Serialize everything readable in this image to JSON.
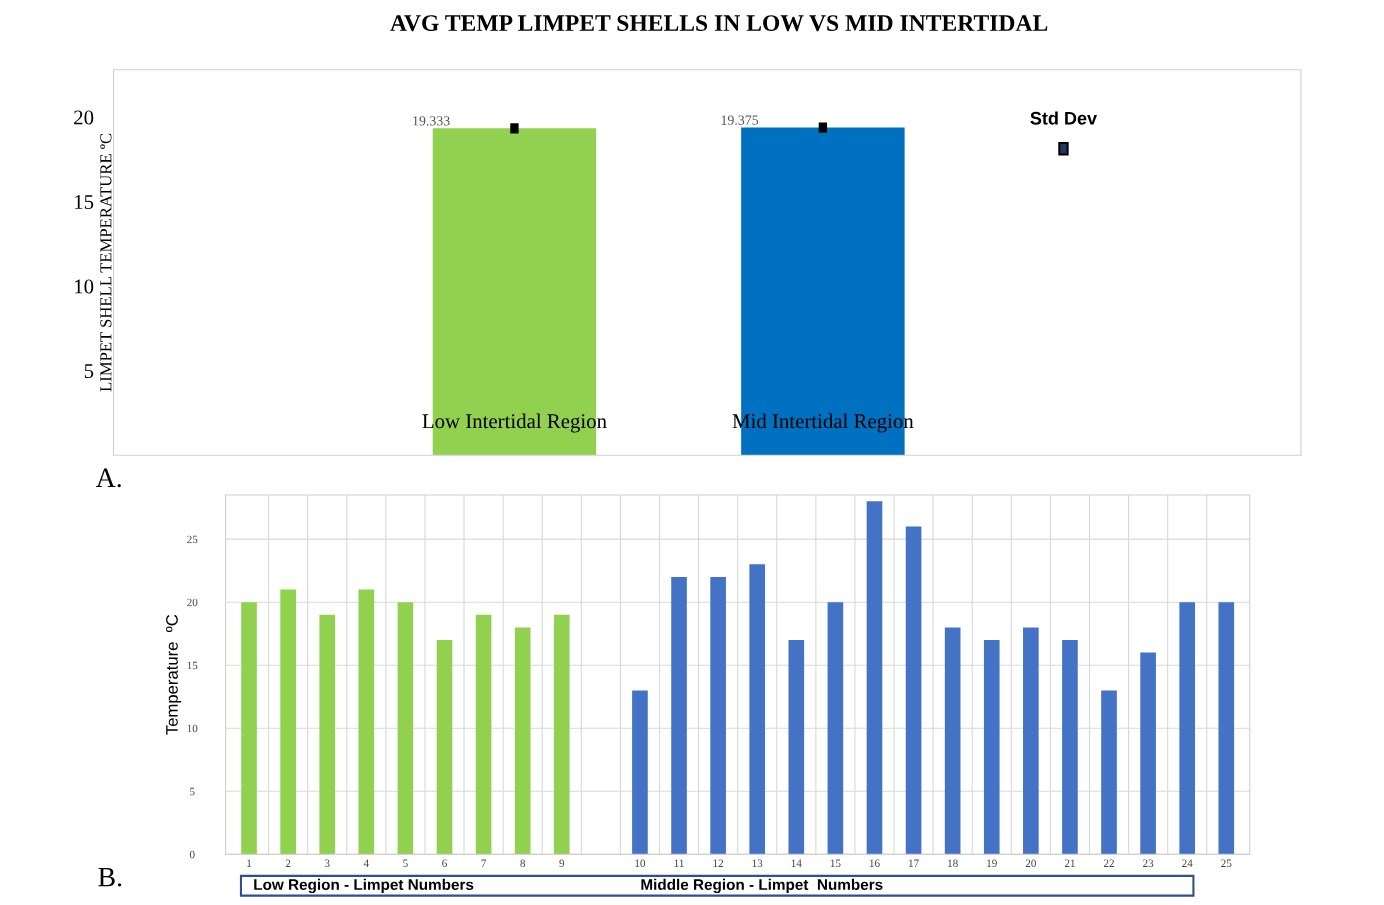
{
  "chart_data": [
    {
      "type": "bar",
      "title": "AVG TEMP LIMPET SHELLS IN LOW VS MID INTERTIDAL",
      "ylabel": "LIMPET SHELL TEMPERATURE ºC",
      "categories": [
        "Low Intertidal Region",
        "Mid Intertidal Region"
      ],
      "values": [
        19.333,
        19.375
      ],
      "errors": [
        0.3,
        0.3
      ],
      "colors": [
        "#92d050",
        "#0070c0"
      ],
      "data_labels": true,
      "ylim": [
        0,
        22.8
      ],
      "yticks": [
        5,
        10,
        15,
        20
      ],
      "grid": false,
      "annotations": [
        "A.",
        "Std Dev"
      ]
    },
    {
      "type": "bar",
      "ylabel": "Temperature  ºC",
      "categories": [
        "1",
        "2",
        "3",
        "4",
        "5",
        "6",
        "7",
        "8",
        "9",
        null,
        "10",
        "11",
        "12",
        "13",
        "14",
        "15",
        "16",
        "17",
        "18",
        "19",
        "20",
        "21",
        "22",
        "23",
        "24",
        "25"
      ],
      "values": [
        20,
        21,
        19,
        21,
        20,
        17,
        19,
        18,
        19,
        null,
        13,
        22,
        22,
        23,
        17,
        20,
        28,
        26,
        18,
        17,
        18,
        17,
        13,
        16,
        20,
        20
      ],
      "colors": [
        "#92d050",
        "#92d050",
        "#92d050",
        "#92d050",
        "#92d050",
        "#92d050",
        "#92d050",
        "#92d050",
        "#92d050",
        null,
        "#4472c4",
        "#4472c4",
        "#4472c4",
        "#4472c4",
        "#4472c4",
        "#4472c4",
        "#4472c4",
        "#4472c4",
        "#4472c4",
        "#4472c4",
        "#4472c4",
        "#4472c4",
        "#4472c4",
        "#4472c4",
        "#4472c4",
        "#4472c4"
      ],
      "ylim": [
        0,
        28.5
      ],
      "yticks": [
        0,
        5,
        10,
        15,
        20,
        25
      ],
      "grid": true,
      "annotations": [
        "B.",
        "Low Region - Limpet Numbers",
        "Middle Region - Limpet  Numbers"
      ]
    }
  ]
}
